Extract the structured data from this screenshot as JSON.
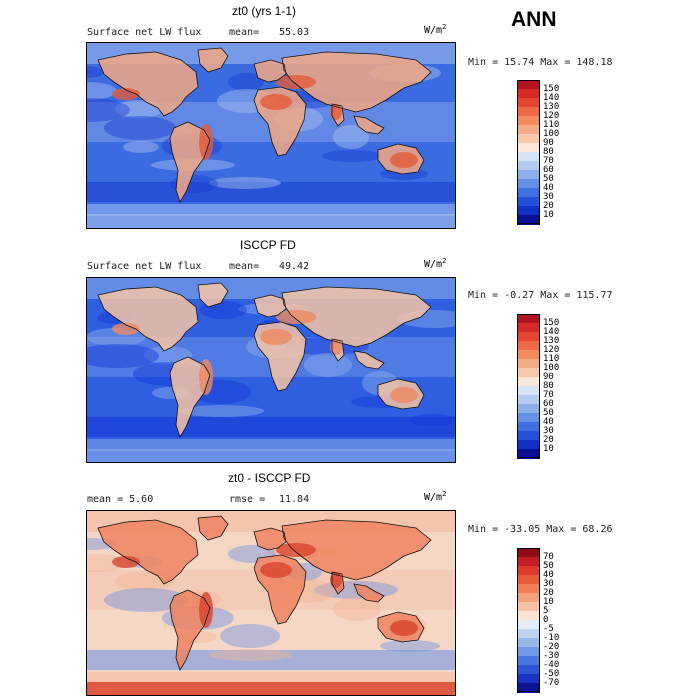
{
  "page": {
    "season": "ANN"
  },
  "panels": [
    {
      "title": "zt0 (yrs 1-1)",
      "left_label": "Surface net LW flux",
      "stat_label": "mean=",
      "stat_value": "55.03",
      "units": "W/m",
      "units_sup": "2",
      "minmax": "Min =  15.74 Max = 148.18",
      "colorbar": {
        "labels": [
          "150",
          "140",
          "130",
          "120",
          "110",
          "100",
          "90",
          "80",
          "70",
          "60",
          "50",
          "40",
          "30",
          "20",
          "10"
        ],
        "colors": [
          "#b0141e",
          "#d62a27",
          "#e54530",
          "#ee6a45",
          "#f28c60",
          "#f4ab86",
          "#f8c8ab",
          "#fde7d8",
          "#d7e4f5",
          "#b4cbef",
          "#8daee9",
          "#6690e6",
          "#3f70e0",
          "#2251d8",
          "#1131c4",
          "#0a0f96"
        ]
      },
      "map": {
        "background": "#3b6be0",
        "land_shade": "#f3a884",
        "land_hot": "#e35a3a",
        "ocean_pale": "#a9c1ef",
        "ocean_deep": "#1a3fd0"
      }
    },
    {
      "title": "ISCCP FD",
      "left_label": "Surface net LW flux",
      "stat_label": "mean=",
      "stat_value": "49.42",
      "units": "W/m",
      "units_sup": "2",
      "minmax": "Min =  -0.27 Max = 115.77",
      "colorbar": {
        "labels": [
          "150",
          "140",
          "130",
          "120",
          "110",
          "100",
          "90",
          "80",
          "70",
          "60",
          "50",
          "40",
          "30",
          "20",
          "10"
        ],
        "colors": [
          "#b0141e",
          "#d62a27",
          "#e54530",
          "#ee6a45",
          "#f28c60",
          "#f4ab86",
          "#f8c8ab",
          "#fde7d8",
          "#d7e4f5",
          "#b4cbef",
          "#8daee9",
          "#6690e6",
          "#3f70e0",
          "#2251d8",
          "#1131c4",
          "#0a0f96"
        ]
      },
      "map": {
        "background": "#2e5fe0",
        "land_shade": "#f6c3a6",
        "land_hot": "#ee8a60",
        "ocean_pale": "#8fb0ec",
        "ocean_deep": "#1537d6"
      }
    },
    {
      "title": "zt0 - ISCCP FD",
      "left_label": "mean =   5.60",
      "stat_label": "rmse =",
      "stat_value": "11.84",
      "units": "W/m",
      "units_sup": "2",
      "minmax": "Min = -33.05 Max =  68.26",
      "colorbar": {
        "labels": [
          "70",
          "50",
          "40",
          "30",
          "20",
          "10",
          "5",
          "0",
          "-5",
          "-10",
          "-20",
          "-30",
          "-40",
          "-50",
          "-70"
        ],
        "colors": [
          "#8e0d14",
          "#c11d22",
          "#dc3a2c",
          "#ea5a3a",
          "#f07f57",
          "#f4a07c",
          "#f7c1a4",
          "#fbe2d3",
          "#e4ecf7",
          "#bfd3f2",
          "#98b7ec",
          "#7098e6",
          "#4a77df",
          "#2d55d4",
          "#1733bf",
          "#0c1590"
        ]
      },
      "map": {
        "background": "#f6d7c6",
        "land_shade": "#ee8460",
        "land_hot": "#d9442d",
        "ocean_pale": "#f2b497",
        "ocean_deep": "#6f95e3"
      }
    }
  ]
}
